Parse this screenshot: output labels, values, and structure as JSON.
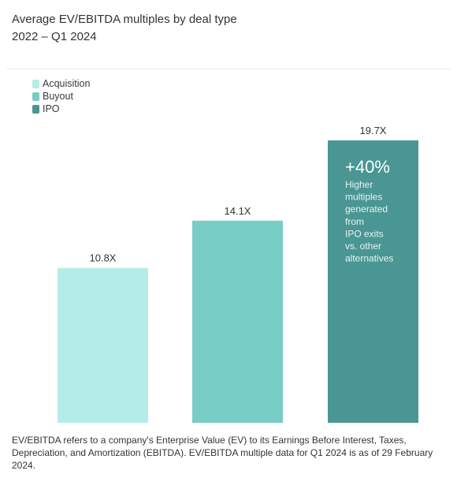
{
  "header": {
    "title": "Average EV/EBITDA multiples by deal type",
    "subtitle": "2022 – Q1 2024"
  },
  "chart_data": {
    "type": "bar",
    "title": "Average EV/EBITDA multiples by deal type",
    "subtitle": "2022 – Q1 2024",
    "categories": [
      "Acquisition",
      "Buyout",
      "IPO"
    ],
    "values": [
      10.8,
      14.1,
      19.7
    ],
    "value_labels": [
      "10.8X",
      "14.1X",
      "19.7X"
    ],
    "colors": [
      "#b3ede7",
      "#78cdc7",
      "#4a9694"
    ],
    "ylim": [
      0,
      19.7
    ],
    "grid": false,
    "legend": {
      "position": "top-left",
      "entries": [
        "Acquisition",
        "Buyout",
        "IPO"
      ]
    },
    "annotation": {
      "headline": "+40%",
      "lines": [
        "Higher",
        "multiples",
        "generated",
        "from",
        "IPO exits",
        "vs. other",
        "alternatives"
      ]
    }
  },
  "footnote": "EV/EBITDA refers to a company's Enterprise Value (EV) to its Earnings Before Interest, Taxes, Depreciation, and Amortization (EBITDA). EV/EBITDA multiple data for Q1 2024 is as of 29 February 2024."
}
